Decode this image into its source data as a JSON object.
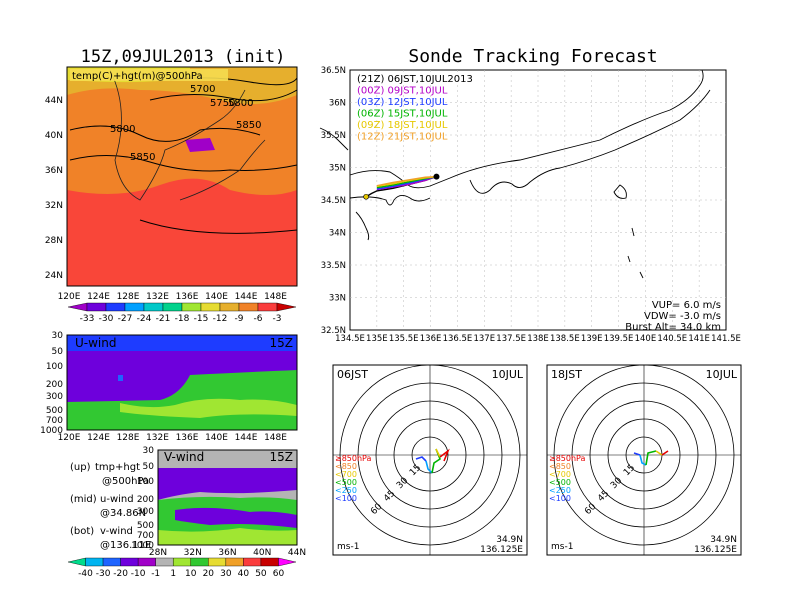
{
  "left_panel_title": "15Z,09JUL2013 (init)",
  "right_panel_title": "Sonde Tracking Forecast",
  "top_map": {
    "label": "temp(C)+hgt(m)@500hPa",
    "lat_ticks": [
      "44N",
      "40N",
      "36N",
      "32N",
      "28N",
      "24N"
    ],
    "lon_ticks": [
      "120E",
      "124E",
      "128E",
      "132E",
      "136E",
      "140E",
      "144E",
      "148E"
    ],
    "contour_labels": [
      "5700",
      "5750",
      "5800",
      "5800",
      "5850",
      "5850"
    ],
    "colorbar_labels": [
      "-33",
      "-30",
      "-27",
      "-24",
      "-21",
      "-18",
      "-15",
      "-12",
      "-9",
      "-6",
      "-3"
    ],
    "colorbar_colors": [
      "#a000c8",
      "#6e00dc",
      "#1e3cff",
      "#00a0ff",
      "#00c8c8",
      "#00d28c",
      "#a0e632",
      "#e6dc32",
      "#e6af2d",
      "#f08228",
      "#fa3c3c",
      "#c80000"
    ]
  },
  "uwind": {
    "label": "U-wind",
    "time": "15Z",
    "p_ticks": [
      "30",
      "50",
      "100",
      "200",
      "300",
      "500",
      "700",
      "1000"
    ],
    "lon_ticks": [
      "120E",
      "124E",
      "128E",
      "132E",
      "136E",
      "140E",
      "144E",
      "148E"
    ]
  },
  "vwind": {
    "label": "V-wind",
    "time": "15Z",
    "p_ticks": [
      "30",
      "50",
      "100",
      "200",
      "300",
      "500",
      "700",
      "1000"
    ],
    "lat_ticks": [
      "28N",
      "32N",
      "36N",
      "40N",
      "44N"
    ]
  },
  "wind_colorbar": {
    "labels": [
      "-40",
      "-30",
      "-20",
      "-10",
      "-1",
      "1",
      "10",
      "20",
      "30",
      "40",
      "50",
      "60"
    ],
    "colors": [
      "#00dc8c",
      "#00b4f0",
      "#1e64ff",
      "#6e00dc",
      "#a000c8",
      "#b4b4b4",
      "#a0e632",
      "#32c832",
      "#e6dc32",
      "#f0a028",
      "#fa3c3c",
      "#c80000",
      "#ff00ff"
    ]
  },
  "legend_notes": [
    {
      "key": "(up)",
      "text": "tmp+hgt",
      "sub": "@500hPa"
    },
    {
      "key": "(mid)",
      "text": "u-wind",
      "sub": "@34.86N"
    },
    {
      "key": "(bot)",
      "text": "v-wind",
      "sub": "@136.11E"
    }
  ],
  "track_map": {
    "lat_ticks": [
      "36.5N",
      "36N",
      "35.5N",
      "35N",
      "34.5N",
      "34N",
      "33.5N",
      "33N",
      "32.5N"
    ],
    "lon_ticks": [
      "134.5E",
      "135E",
      "135.5E",
      "136E",
      "136.5E",
      "137E",
      "137.5E",
      "138E",
      "138.5E",
      "139E",
      "139.5E",
      "140E",
      "140.5E",
      "141E",
      "141.5E"
    ],
    "legend": [
      {
        "text": "(21Z) 06JST,10JUL2013",
        "color": "#000000"
      },
      {
        "text": "(00Z) 09JST,10JUL",
        "color": "#b400c8"
      },
      {
        "text": "(03Z) 12JST,10JUL",
        "color": "#1e3cff"
      },
      {
        "text": "(06Z) 15JST,10JUL",
        "color": "#00b400"
      },
      {
        "text": "(09Z) 18JST,10JUL",
        "color": "#e6c800"
      },
      {
        "text": "(12Z) 21JST,10JUL",
        "color": "#f0a028"
      }
    ],
    "info": [
      "VUP= 6.0 m/s",
      "VDW= -3.0 m/s",
      "Burst Alt= 34.0 km"
    ]
  },
  "hodographs": [
    {
      "time": "06JST",
      "date": "10JUL",
      "lat": "34.9N",
      "lon": "136.125E",
      "unit": "ms-1"
    },
    {
      "time": "18JST",
      "date": "10JUL",
      "lat": "34.9N",
      "lon": "136.125E",
      "unit": "ms-1"
    }
  ],
  "hodo_ring_labels": [
    "15",
    "30",
    "45",
    "60"
  ],
  "hodo_levels": [
    {
      "text": "≥850hPa",
      "color": "#e60000"
    },
    {
      "text": "<850",
      "color": "#f08228"
    },
    {
      "text": "<700",
      "color": "#e6c800"
    },
    {
      "text": "<500",
      "color": "#00b400"
    },
    {
      "text": "<250",
      "color": "#00a0ff"
    },
    {
      "text": "<100",
      "color": "#1e3cff"
    }
  ],
  "chart_data": {
    "type": "line",
    "title": "Sonde Tracking Forecast",
    "xlim": [
      134.5,
      141.5
    ],
    "ylim": [
      32.5,
      36.5
    ],
    "series": [
      {
        "name": "(21Z) 06JST,10JUL2013",
        "x": [
          136.11,
          135.9,
          135.6,
          135.3,
          135.0,
          134.9,
          134.8
        ],
        "y": [
          34.86,
          34.8,
          34.74,
          34.68,
          34.64,
          34.6,
          34.55
        ]
      },
      {
        "name": "(00Z) 09JST,10JUL",
        "x": [
          136.13,
          135.9,
          135.6,
          135.3,
          135.0
        ],
        "y": [
          34.87,
          34.8,
          34.74,
          34.7,
          34.66
        ]
      },
      {
        "name": "(03Z) 12JST,10JUL",
        "x": [
          136.12,
          135.9,
          135.6,
          135.3,
          135.0
        ],
        "y": [
          34.86,
          34.82,
          34.76,
          34.71,
          34.67
        ]
      },
      {
        "name": "(06Z) 15JST,10JUL",
        "x": [
          136.12,
          135.9,
          135.6,
          135.3,
          135.0
        ],
        "y": [
          34.86,
          34.83,
          34.78,
          34.73,
          34.69
        ]
      },
      {
        "name": "(09Z) 18JST,10JUL",
        "x": [
          136.12,
          135.9,
          135.6,
          135.3,
          135.0
        ],
        "y": [
          34.86,
          34.84,
          34.8,
          34.75,
          34.71
        ]
      },
      {
        "name": "(12Z) 21JST,10JUL",
        "x": [
          136.12,
          135.9,
          135.6,
          135.3,
          135.0
        ],
        "y": [
          34.86,
          34.85,
          34.81,
          34.77,
          34.72
        ]
      }
    ]
  }
}
